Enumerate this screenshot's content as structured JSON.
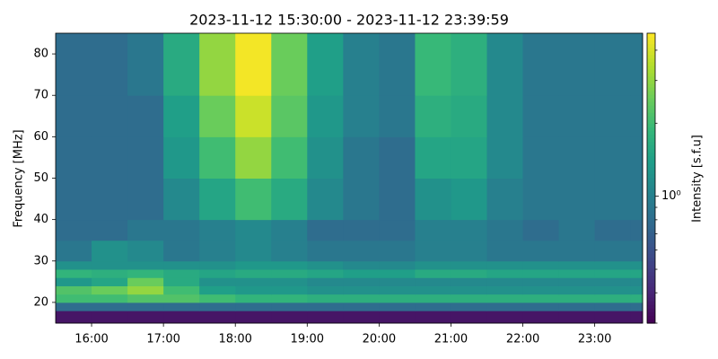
{
  "chart_data": {
    "type": "heatmap",
    "title": "2023-11-12 15:30:00 - 2023-11-12 23:39:59",
    "y_label": "Frequency [MHz]",
    "colorbar_label": "Intensity [s.f.u]",
    "colormap": "viridis",
    "color_scale": "log",
    "xbins": [
      15.5,
      16,
      16.5,
      17,
      17.5,
      18,
      18.5,
      19,
      19.5,
      20,
      20.5,
      21,
      21.5,
      22,
      22.5,
      23,
      23.5,
      23.6664
    ],
    "ybins": [
      15,
      18,
      20,
      22,
      24,
      26,
      28,
      30,
      35,
      40,
      50,
      60,
      70,
      85
    ],
    "values": [
      [
        0.35,
        0.35,
        0.35,
        0.35,
        0.35,
        0.35,
        0.35,
        0.35,
        0.35,
        0.35,
        0.35,
        0.35,
        0.35,
        0.35,
        0.35,
        0.35,
        0.35
      ],
      [
        0.8,
        0.8,
        0.8,
        0.8,
        0.8,
        0.8,
        0.8,
        0.8,
        0.8,
        0.8,
        0.8,
        0.8,
        0.8,
        0.8,
        0.8,
        0.8,
        0.8
      ],
      [
        2.0,
        2.0,
        2.2,
        2.2,
        2.0,
        1.8,
        1.8,
        1.7,
        1.7,
        1.7,
        1.7,
        1.7,
        1.7,
        1.7,
        1.7,
        1.7,
        1.7
      ],
      [
        2.2,
        2.5,
        3.0,
        2.0,
        1.4,
        1.3,
        1.3,
        1.2,
        1.2,
        1.2,
        1.2,
        1.2,
        1.2,
        1.2,
        1.2,
        1.2,
        1.2
      ],
      [
        1.3,
        1.5,
        2.5,
        1.6,
        1.2,
        1.2,
        1.2,
        1.1,
        1.1,
        1.1,
        1.1,
        1.1,
        1.1,
        1.1,
        1.1,
        1.1,
        1.1
      ],
      [
        1.8,
        1.7,
        1.8,
        1.6,
        1.5,
        1.6,
        1.6,
        1.5,
        1.4,
        1.4,
        1.6,
        1.6,
        1.5,
        1.5,
        1.5,
        1.5,
        1.5
      ],
      [
        1.2,
        1.2,
        1.2,
        1.2,
        1.2,
        1.3,
        1.3,
        1.2,
        1.1,
        1.1,
        1.2,
        1.2,
        1.2,
        1.2,
        1.2,
        1.2,
        1.2
      ],
      [
        0.9,
        1.2,
        1.1,
        0.9,
        1.0,
        1.1,
        1.0,
        0.9,
        0.9,
        0.9,
        1.0,
        1.0,
        0.9,
        0.9,
        0.9,
        0.9,
        0.9
      ],
      [
        0.8,
        0.8,
        0.9,
        0.9,
        1.0,
        1.1,
        1.0,
        0.8,
        0.8,
        0.8,
        1.0,
        1.0,
        0.9,
        0.8,
        0.9,
        0.8,
        0.8
      ],
      [
        0.8,
        0.8,
        0.8,
        1.1,
        1.5,
        2.0,
        1.6,
        1.1,
        0.9,
        0.8,
        1.2,
        1.3,
        1.0,
        0.9,
        0.9,
        0.9,
        0.9
      ],
      [
        0.8,
        0.8,
        0.8,
        1.3,
        2.0,
        3.0,
        2.0,
        1.2,
        0.9,
        0.8,
        1.5,
        1.5,
        1.1,
        0.9,
        0.9,
        0.9,
        0.9
      ],
      [
        0.8,
        0.8,
        0.8,
        1.4,
        2.5,
        3.8,
        2.3,
        1.3,
        1.0,
        0.9,
        1.7,
        1.6,
        1.1,
        0.9,
        0.9,
        0.9,
        0.9
      ],
      [
        0.8,
        0.8,
        0.9,
        1.6,
        3.0,
        4.5,
        2.5,
        1.4,
        1.0,
        0.9,
        1.9,
        1.7,
        1.1,
        0.9,
        0.9,
        0.9,
        0.9
      ]
    ],
    "xlim": [
      15.5,
      23.6664
    ],
    "xticks": [
      {
        "value": 16,
        "label": "16:00"
      },
      {
        "value": 17,
        "label": "17:00"
      },
      {
        "value": 18,
        "label": "18:00"
      },
      {
        "value": 19,
        "label": "19:00"
      },
      {
        "value": 20,
        "label": "20:00"
      },
      {
        "value": 21,
        "label": "21:00"
      },
      {
        "value": 22,
        "label": "22:00"
      },
      {
        "value": 23,
        "label": "23:00"
      }
    ],
    "ylim": [
      15,
      85
    ],
    "yticks": [
      20,
      30,
      40,
      50,
      60,
      70,
      80
    ],
    "clim": [
      0.3,
      4.7
    ],
    "cticks": [
      {
        "value": 1,
        "label": "10⁰"
      }
    ],
    "cminorticks": [
      0.3,
      0.4,
      0.5,
      0.6,
      0.7,
      0.8,
      0.9,
      2,
      3,
      4
    ]
  }
}
